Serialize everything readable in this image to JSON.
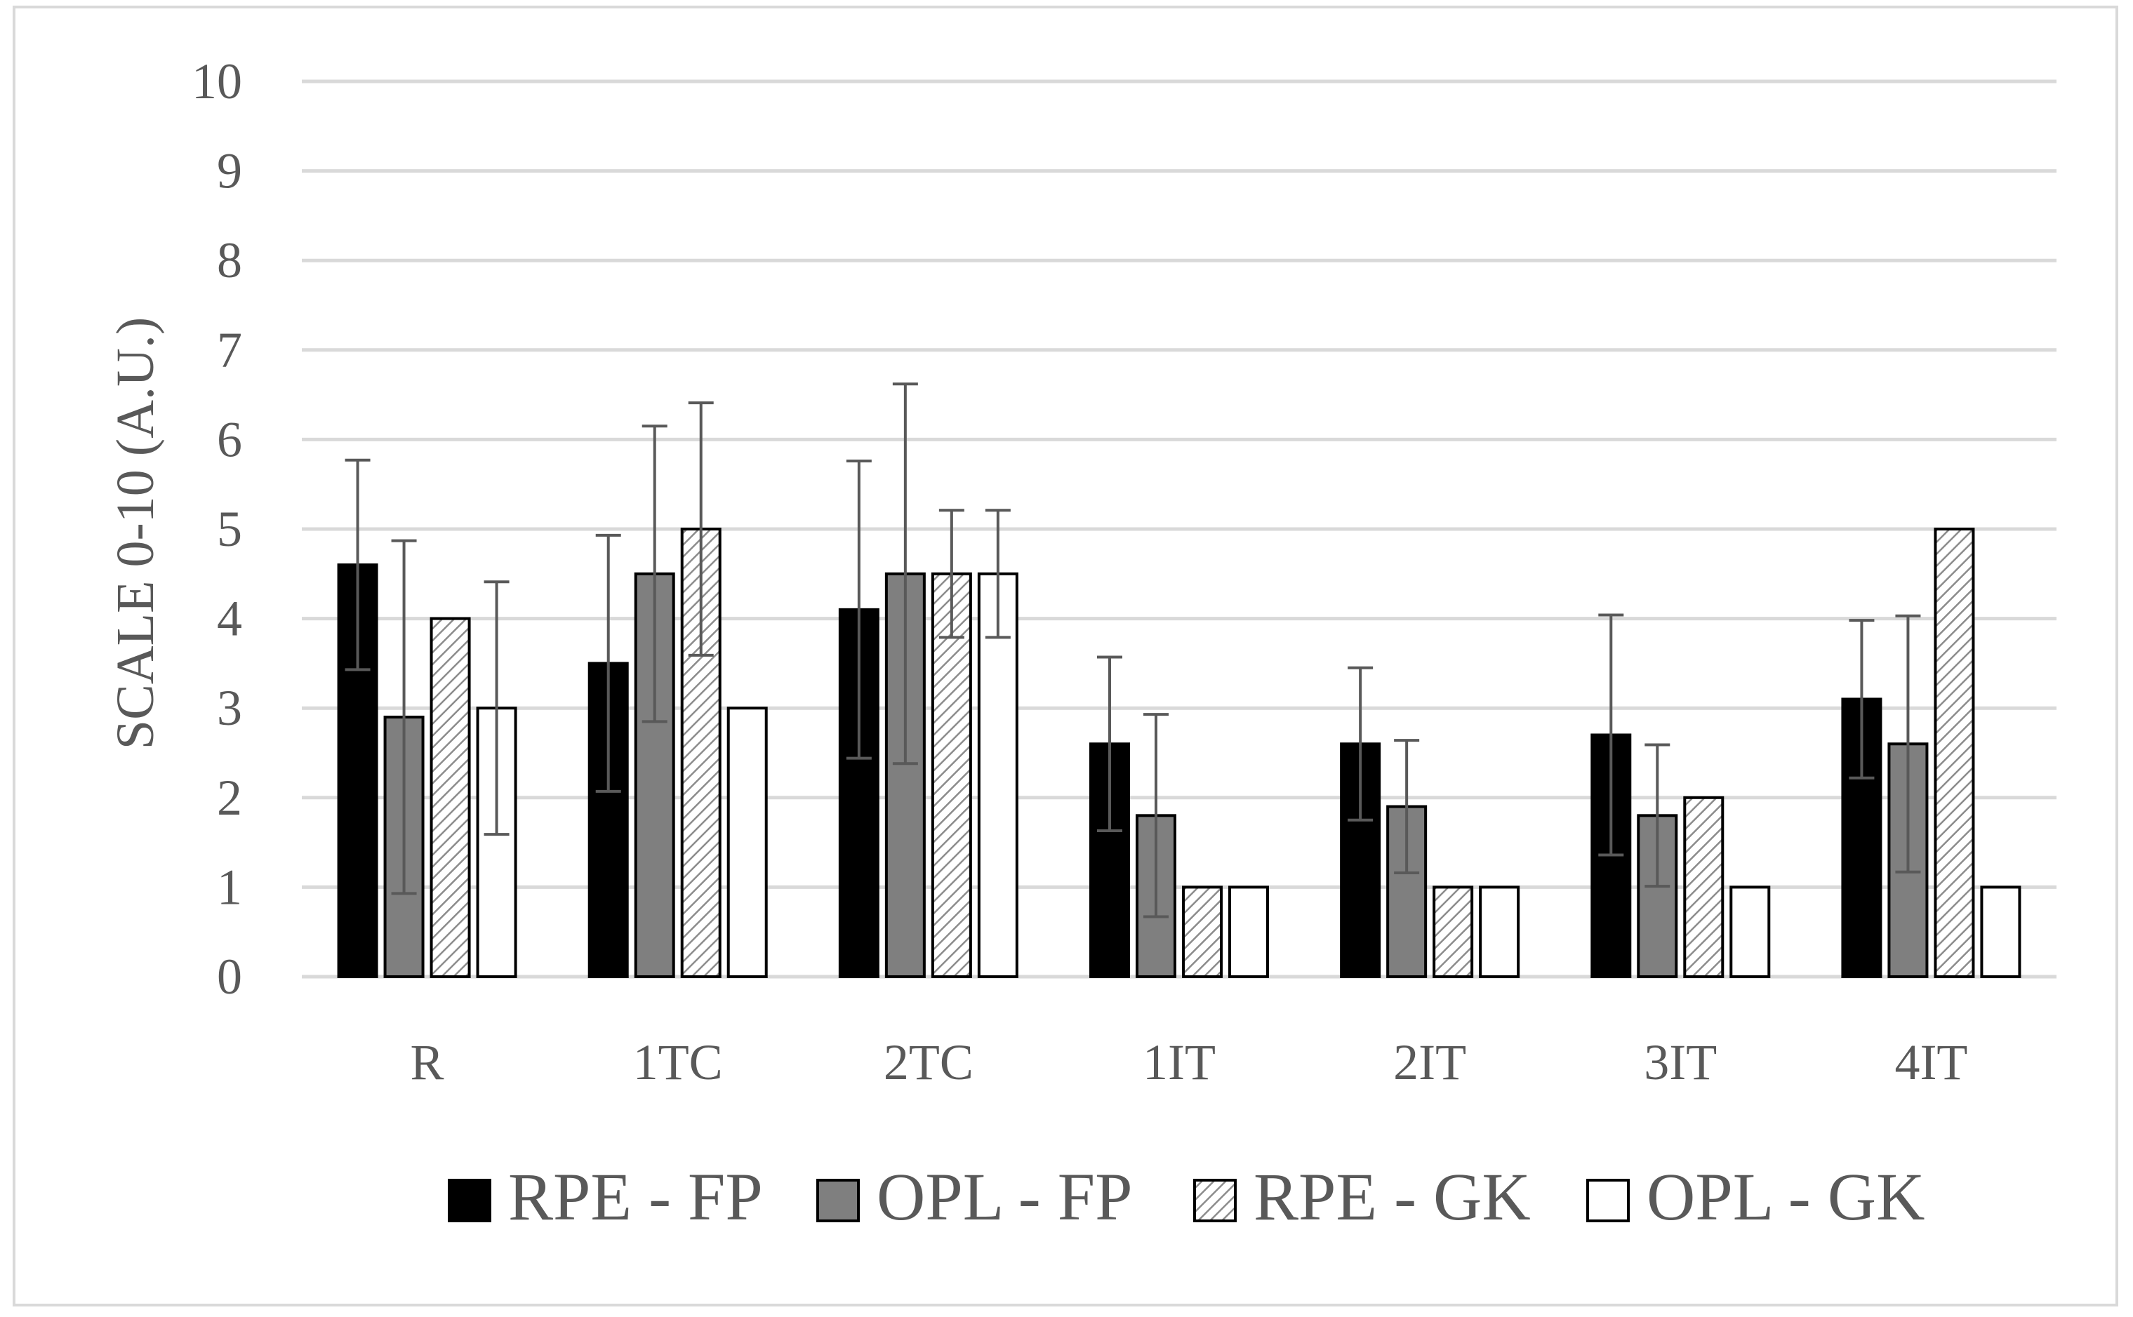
{
  "chart_data": {
    "type": "bar",
    "title": "",
    "xlabel": "",
    "ylabel": "SCALE 0-10 (A.U.)",
    "ylim": [
      0,
      10
    ],
    "yticks": [
      "0",
      "1",
      "2",
      "3",
      "4",
      "5",
      "6",
      "7",
      "8",
      "9",
      "10"
    ],
    "grid": true,
    "legend_position": "bottom",
    "categories": [
      "R",
      "1TC",
      "2TC",
      "1IT",
      "2IT",
      "3IT",
      "4IT"
    ],
    "series": [
      {
        "name": "RPE - FP",
        "style": "solid-black",
        "color": "#000000",
        "values": [
          4.6,
          3.5,
          4.1,
          2.6,
          2.6,
          2.7,
          3.1
        ],
        "error": [
          1.17,
          1.43,
          1.66,
          0.97,
          0.85,
          1.34,
          0.88
        ]
      },
      {
        "name": "OPL - FP",
        "style": "solid-gray",
        "color": "#7f7f7f",
        "values": [
          2.9,
          4.5,
          4.5,
          1.8,
          1.9,
          1.8,
          2.6
        ],
        "error": [
          1.97,
          1.65,
          2.12,
          1.13,
          0.74,
          0.79,
          1.43
        ]
      },
      {
        "name": "RPE - GK",
        "style": "hatched",
        "color": "#a6a6a6",
        "values": [
          4.0,
          5.0,
          4.5,
          1.0,
          1.0,
          2.0,
          5.0
        ],
        "error": [
          null,
          1.41,
          0.71,
          null,
          null,
          null,
          null
        ]
      },
      {
        "name": "OPL - GK",
        "style": "white",
        "color": "#ffffff",
        "values": [
          3.0,
          3.0,
          4.5,
          1.0,
          1.0,
          1.0,
          1.0
        ],
        "error": [
          1.41,
          null,
          0.71,
          null,
          null,
          null,
          null
        ]
      }
    ]
  }
}
